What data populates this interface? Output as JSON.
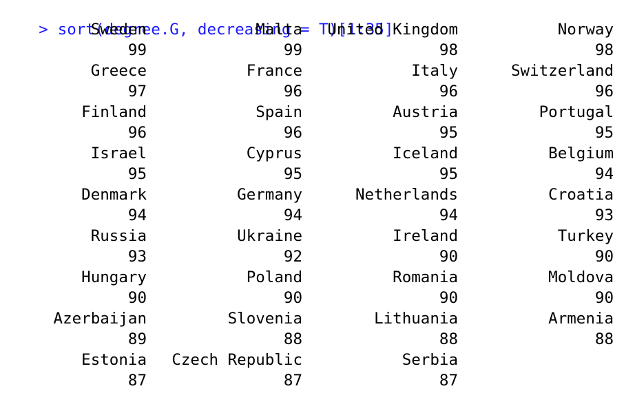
{
  "console": {
    "prompt": ">",
    "command": "sort(degree.G, decreasing = T)[1:35]",
    "prompt_color": "#1a1aff",
    "rows": [
      [
        {
          "name": "Sweden",
          "value": "99"
        },
        {
          "name": "Malta",
          "value": "99"
        },
        {
          "name": "United Kingdom",
          "value": "98"
        },
        {
          "name": "Norway",
          "value": "98"
        }
      ],
      [
        {
          "name": "Greece",
          "value": "97"
        },
        {
          "name": "France",
          "value": "96"
        },
        {
          "name": "Italy",
          "value": "96"
        },
        {
          "name": "Switzerland",
          "value": "96"
        }
      ],
      [
        {
          "name": "Finland",
          "value": "96"
        },
        {
          "name": "Spain",
          "value": "96"
        },
        {
          "name": "Austria",
          "value": "95"
        },
        {
          "name": "Portugal",
          "value": "95"
        }
      ],
      [
        {
          "name": "Israel",
          "value": "95"
        },
        {
          "name": "Cyprus",
          "value": "95"
        },
        {
          "name": "Iceland",
          "value": "95"
        },
        {
          "name": "Belgium",
          "value": "94"
        }
      ],
      [
        {
          "name": "Denmark",
          "value": "94"
        },
        {
          "name": "Germany",
          "value": "94"
        },
        {
          "name": "Netherlands",
          "value": "94"
        },
        {
          "name": "Croatia",
          "value": "93"
        }
      ],
      [
        {
          "name": "Russia",
          "value": "93"
        },
        {
          "name": "Ukraine",
          "value": "92"
        },
        {
          "name": "Ireland",
          "value": "90"
        },
        {
          "name": "Turkey",
          "value": "90"
        }
      ],
      [
        {
          "name": "Hungary",
          "value": "90"
        },
        {
          "name": "Poland",
          "value": "90"
        },
        {
          "name": "Romania",
          "value": "90"
        },
        {
          "name": "Moldova",
          "value": "90"
        }
      ],
      [
        {
          "name": "Azerbaijan",
          "value": "89"
        },
        {
          "name": "Slovenia",
          "value": "88"
        },
        {
          "name": "Lithuania",
          "value": "88"
        },
        {
          "name": "Armenia",
          "value": "88"
        }
      ],
      [
        {
          "name": "Estonia",
          "value": "87"
        },
        {
          "name": "Czech Republic",
          "value": "87"
        },
        {
          "name": "Serbia",
          "value": "87"
        }
      ]
    ]
  }
}
